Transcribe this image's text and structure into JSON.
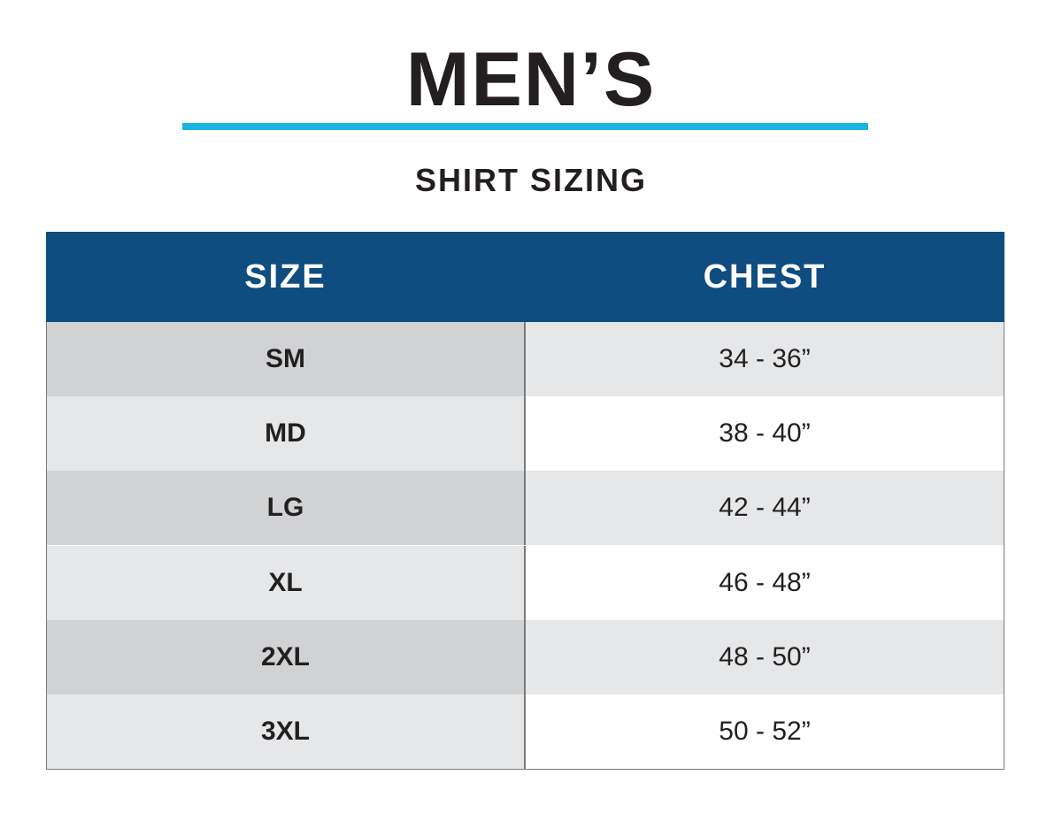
{
  "header": {
    "title": "MEN’S",
    "subtitle": "SHIRT SIZING"
  },
  "table": {
    "columns": [
      "SIZE",
      "CHEST"
    ],
    "rows": [
      [
        "SM",
        "34 - 36”"
      ],
      [
        "MD",
        "38 - 40”"
      ],
      [
        "LG",
        "42 - 44”"
      ],
      [
        "XL",
        "46 - 48”"
      ],
      [
        "2XL",
        "48 - 50”"
      ],
      [
        "3XL",
        "50 - 52”"
      ]
    ]
  }
}
